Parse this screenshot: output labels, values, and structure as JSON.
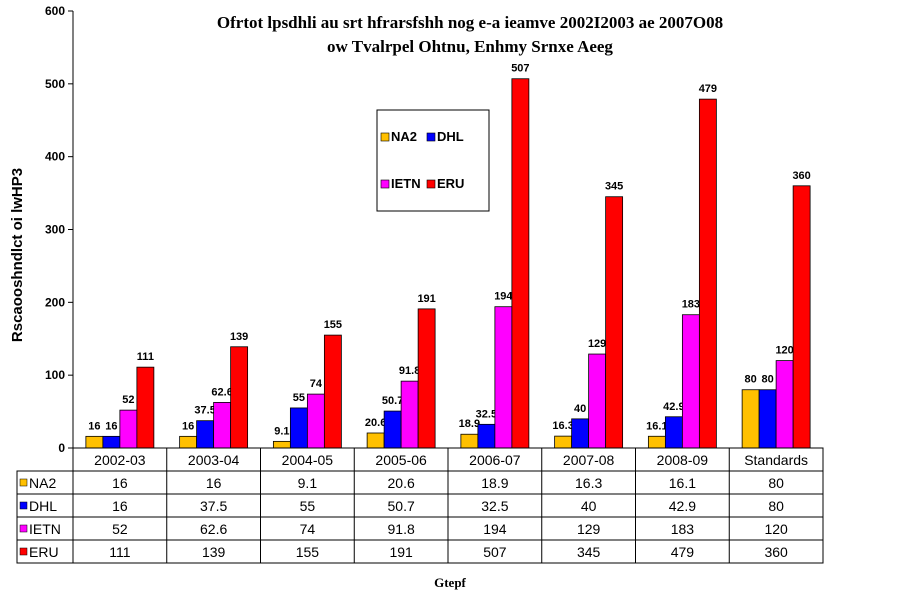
{
  "chart_data": {
    "type": "bar",
    "title_line1": "Ofrtot lpsdhli au srt hfrarsfshh  nog e-a ieamve 2002I2003 ae 2007O08",
    "title_line2": "ow Tvalrpel Ohtnu, Enhmy Srnxe Aeeg",
    "ylabel": "Rscaooshndlct oi  lwHP3",
    "xlabel": "Gtepf",
    "ylim": [
      0,
      600
    ],
    "yticks": [
      0,
      100,
      200,
      300,
      400,
      500,
      600
    ],
    "categories": [
      "2002-03",
      "2003-04",
      "2004-05",
      "2005-06",
      "2006-07",
      "2007-08",
      "2008-09",
      "Standards"
    ],
    "series": [
      {
        "name": "NA2",
        "color": "#FFC000",
        "values": [
          16,
          16,
          9.1,
          20.6,
          18.9,
          16.3,
          16.1,
          80
        ]
      },
      {
        "name": "DHL",
        "color": "#0000FF",
        "values": [
          16,
          37.5,
          55,
          50.7,
          32.5,
          40,
          42.9,
          80
        ]
      },
      {
        "name": "IETN",
        "color": "#FF00FF",
        "values": [
          52,
          62.6,
          74,
          91.8,
          194,
          129,
          183,
          120
        ]
      },
      {
        "name": "ERU",
        "color": "#FF0000",
        "values": [
          111,
          139,
          155,
          191,
          507,
          345,
          479,
          360
        ]
      }
    ],
    "legend_position": "inside-top-center",
    "grid": false
  }
}
